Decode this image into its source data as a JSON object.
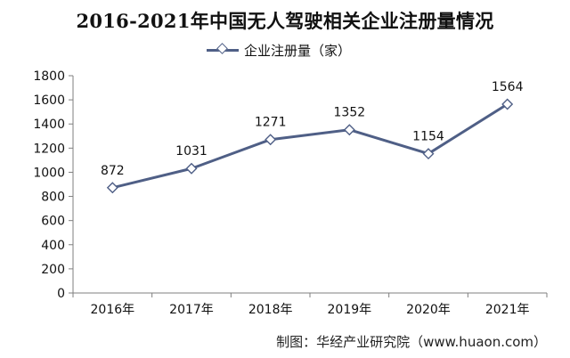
{
  "chart_data": {
    "type": "line",
    "title": "2016-2021年中国无人驾驶相关企业注册量情况",
    "categories": [
      "2016年",
      "2017年",
      "2018年",
      "2019年",
      "2020年",
      "2021年"
    ],
    "series": [
      {
        "name": "企业注册量（家）",
        "values": [
          872,
          1031,
          1271,
          1352,
          1154,
          1564
        ],
        "color": "#4f5f86"
      }
    ],
    "data_labels": [
      "872",
      "1031",
      "1271",
      "1352",
      "1154",
      "1564"
    ],
    "ylim": [
      0,
      1800
    ],
    "yticks": [
      0,
      200,
      400,
      600,
      800,
      1000,
      1200,
      1400,
      1600,
      1800
    ],
    "xlabel": "",
    "ylabel": "",
    "grid": false,
    "legend_position": "top-center",
    "marker": "hollow-diamond"
  },
  "source": "制图：华经产业研究院（www.huaon.com）"
}
